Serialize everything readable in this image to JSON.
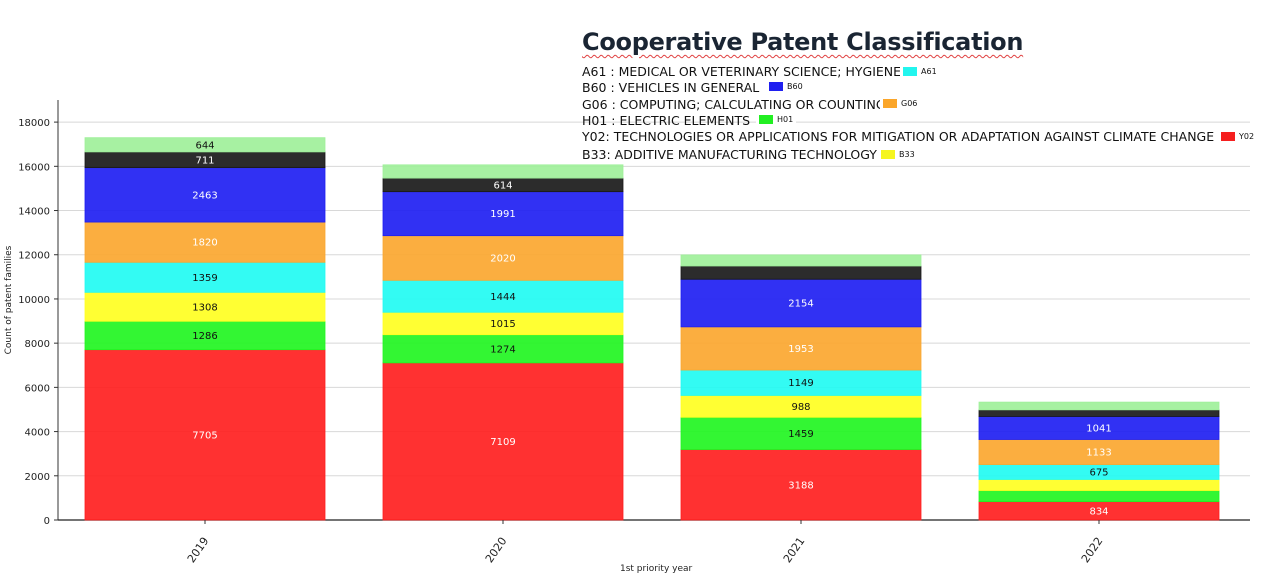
{
  "title": "Cooperative Patent Classification",
  "categories_legend": [
    {
      "code": "A61",
      "text": "A61 : MEDICAL OR VETERINARY SCIENCE; HYGIENE",
      "color": "#22f5ee"
    },
    {
      "code": "B60",
      "text": "B60 : VEHICLES IN GENERAL",
      "color": "#1f1ff0"
    },
    {
      "code": "G06",
      "text": "G06 : COMPUTING; CALCULATING OR COUNTING",
      "color": "#fba62a"
    },
    {
      "code": "H01",
      "text": "H01 : ELECTRIC ELEMENTS",
      "color": "#22ef22"
    },
    {
      "code": "Y02",
      "text": "Y02: TECHNOLOGIES OR APPLICATIONS FOR MITIGATION OR ADAPTATION AGAINST CLIMATE CHANGE",
      "color": "#f51f1f"
    },
    {
      "code": "B33",
      "text": "B33: ADDITIVE MANUFACTURING TECHNOLOGY",
      "color": "#f5f51f"
    }
  ],
  "chart_data": {
    "type": "bar",
    "stacked": true,
    "categories": [
      "2019",
      "2020",
      "2021",
      "2022"
    ],
    "xlabel": "1st priority year",
    "ylabel": "Count of patent families",
    "ylim": [
      0,
      19000
    ],
    "yticks": [
      0,
      2000,
      4000,
      6000,
      8000,
      10000,
      12000,
      14000,
      16000,
      18000
    ],
    "grid": true,
    "series": [
      {
        "name": "Y02",
        "color": "#ff1f1f",
        "values": [
          7705,
          7109,
          3188,
          834
        ],
        "labels": [
          "7705",
          "7109",
          "3188",
          "834"
        ],
        "label_color": "#ffffff"
      },
      {
        "name": "H01",
        "color": "#22f522",
        "values": [
          1286,
          1274,
          1459,
          500
        ],
        "labels": [
          "1286",
          "1274",
          "1459",
          ""
        ],
        "label_color": "#111111"
      },
      {
        "name": "B33",
        "color": "#ffff22",
        "values": [
          1308,
          1015,
          988,
          500
        ],
        "labels": [
          "1308",
          "1015",
          "988",
          ""
        ],
        "label_color": "#111111"
      },
      {
        "name": "A61",
        "color": "#22fbf2",
        "values": [
          1359,
          1444,
          1149,
          675
        ],
        "labels": [
          "1359",
          "1444",
          "1149",
          "675"
        ],
        "label_color": "#111111"
      },
      {
        "name": "G06",
        "color": "#fba730",
        "values": [
          1820,
          2020,
          1953,
          1133
        ],
        "labels": [
          "1820",
          "2020",
          "1953",
          "1133"
        ],
        "label_color": "#ffffff"
      },
      {
        "name": "B60",
        "color": "#1f1ff2",
        "values": [
          2463,
          1991,
          2154,
          1041
        ],
        "labels": [
          "2463",
          "1991",
          "2154",
          "1041"
        ],
        "label_color": "#ffffff"
      },
      {
        "color": "#1a1a1a",
        "values": [
          711,
          614,
          600,
          300
        ],
        "labels": [
          "711",
          "614",
          "",
          ""
        ],
        "label_color": "#ffffff"
      },
      {
        "color": "#9ff09a",
        "values": [
          644,
          600,
          500,
          350
        ],
        "labels": [
          "644",
          "",
          "",
          ""
        ],
        "label_color": "#111111"
      }
    ]
  }
}
